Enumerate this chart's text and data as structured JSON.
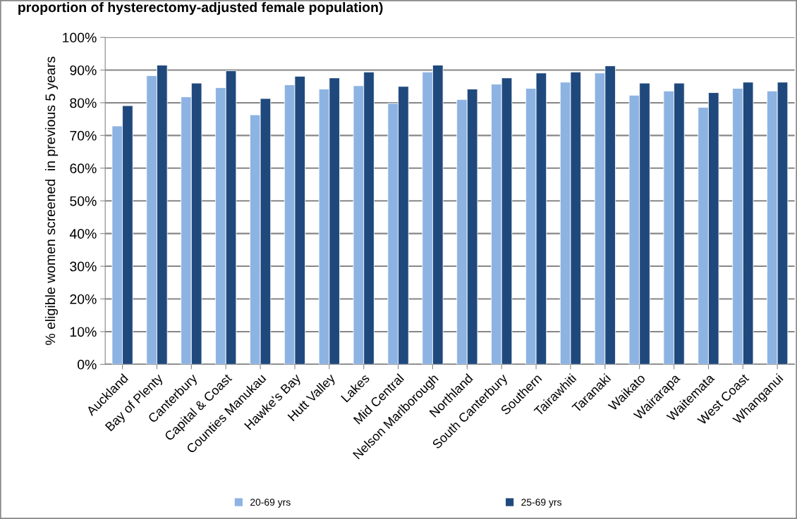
{
  "chart_data": {
    "type": "bar",
    "title": "proportion of hysterectomy-adjusted female population)",
    "ylabel": "% eligible women screened  in previous 5 years",
    "categories": [
      "Auckland",
      "Bay of Plenty",
      "Canterbury",
      "Capital & Coast",
      "Counties Manukau",
      "Hawke's Bay",
      "Hutt Valley",
      "Lakes",
      "Mid Central",
      "Nelson Marlborough",
      "Northland",
      "South Canterbury",
      "Southern",
      "Tairawhiti",
      "Taranaki",
      "Waikato",
      "Wairarapa",
      "Waitemata",
      "West Coast",
      "Whanganui"
    ],
    "series": [
      {
        "name": "20-69 yrs",
        "color": "#8db3e2",
        "values": [
          72.9,
          88.3,
          81.8,
          84.6,
          76.3,
          85.5,
          84.2,
          85.2,
          79.8,
          89.4,
          81.0,
          85.7,
          84.4,
          86.3,
          89.1,
          82.3,
          83.6,
          78.6,
          84.4,
          83.6
        ]
      },
      {
        "name": "25-69 yrs",
        "color": "#1f497d",
        "values": [
          79.1,
          91.5,
          86.0,
          89.8,
          81.3,
          88.1,
          87.6,
          89.4,
          85.0,
          91.5,
          84.2,
          87.6,
          89.1,
          89.4,
          91.3,
          86.0,
          86.0,
          83.1,
          86.3,
          86.3
        ]
      }
    ],
    "ylim": [
      0,
      100
    ],
    "yticks": [
      {
        "value": 0,
        "label": "0%"
      },
      {
        "value": 10,
        "label": "10%"
      },
      {
        "value": 20,
        "label": "20%"
      },
      {
        "value": 30,
        "label": "30%"
      },
      {
        "value": 40,
        "label": "40%"
      },
      {
        "value": 50,
        "label": "50%"
      },
      {
        "value": 60,
        "label": "60%"
      },
      {
        "value": 70,
        "label": "70%"
      },
      {
        "value": 80,
        "label": "80%"
      },
      {
        "value": 90,
        "label": "90%"
      },
      {
        "value": 100,
        "label": "100%"
      }
    ],
    "grid": "y",
    "legend": "bottom"
  }
}
